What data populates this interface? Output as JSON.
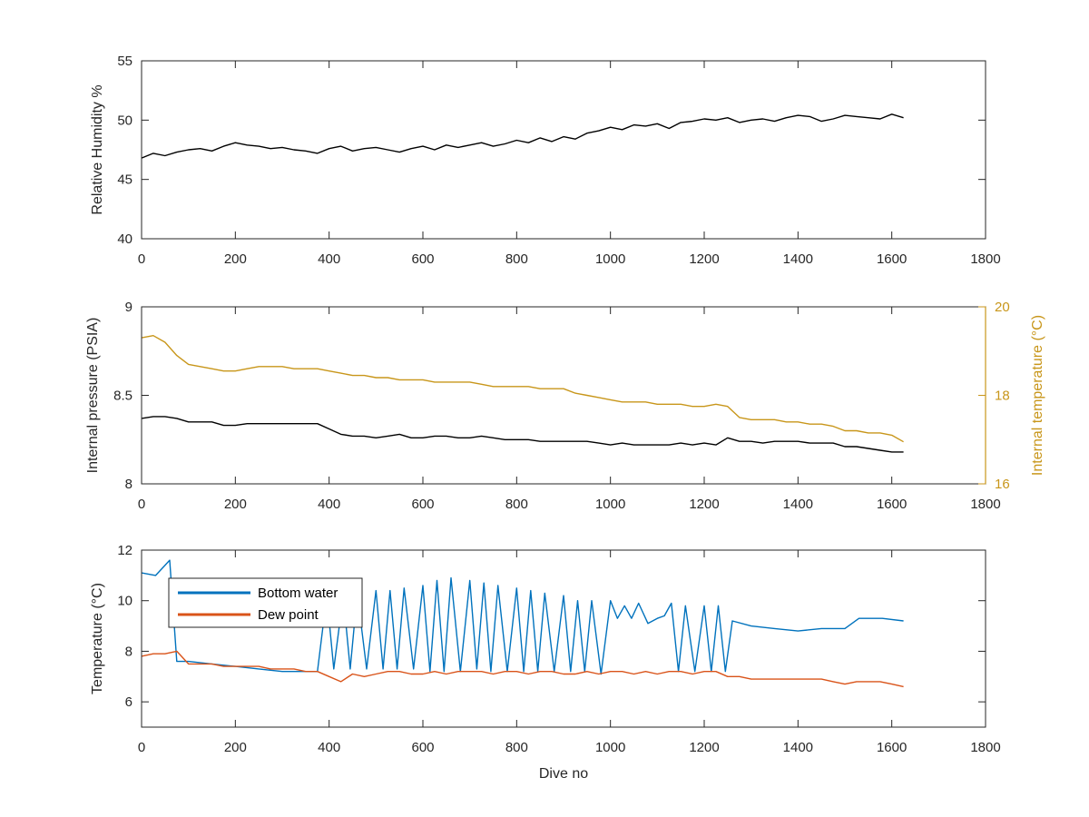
{
  "colors": {
    "axis": "#262626",
    "black_series": "#000000",
    "gold_series": "#C8961A",
    "blue_series": "#0072BD",
    "orange_series": "#D95319"
  },
  "chart_data": [
    {
      "type": "line",
      "xlabel": "",
      "ylabel": "Relative Humidity %",
      "xlim": [
        0,
        1800
      ],
      "ylim": [
        40,
        55
      ],
      "xticks": [
        "0",
        "200",
        "400",
        "600",
        "800",
        "1000",
        "1200",
        "1400",
        "1600",
        "1800"
      ],
      "yticks": [
        "40",
        "45",
        "50",
        "55"
      ],
      "series": [
        {
          "color_key": "black_series",
          "x": [
            0,
            25,
            50,
            75,
            100,
            125,
            150,
            175,
            200,
            225,
            250,
            275,
            300,
            325,
            350,
            375,
            400,
            425,
            450,
            475,
            500,
            525,
            550,
            575,
            600,
            625,
            650,
            675,
            700,
            725,
            750,
            775,
            800,
            825,
            850,
            875,
            900,
            925,
            950,
            975,
            1000,
            1025,
            1050,
            1075,
            1100,
            1125,
            1150,
            1175,
            1200,
            1225,
            1250,
            1275,
            1300,
            1325,
            1350,
            1375,
            1400,
            1425,
            1450,
            1475,
            1500,
            1525,
            1550,
            1575,
            1600,
            1625
          ],
          "y": [
            46.8,
            47.2,
            47.0,
            47.3,
            47.5,
            47.6,
            47.4,
            47.8,
            48.1,
            47.9,
            47.8,
            47.6,
            47.7,
            47.5,
            47.4,
            47.2,
            47.6,
            47.8,
            47.4,
            47.6,
            47.7,
            47.5,
            47.3,
            47.6,
            47.8,
            47.5,
            47.9,
            47.7,
            47.9,
            48.1,
            47.8,
            48.0,
            48.3,
            48.1,
            48.5,
            48.2,
            48.6,
            48.4,
            48.9,
            49.1,
            49.4,
            49.2,
            49.6,
            49.5,
            49.7,
            49.3,
            49.8,
            49.9,
            50.1,
            50.0,
            50.2,
            49.8,
            50.0,
            50.1,
            49.9,
            50.2,
            50.4,
            50.3,
            49.9,
            50.1,
            50.4,
            50.3,
            50.2,
            50.1,
            50.5,
            50.2
          ]
        }
      ]
    },
    {
      "type": "line",
      "xlabel": "",
      "ylabel": "Internal pressure (PSIA)",
      "y2label": "Internal temperature (°C)",
      "xlim": [
        0,
        1800
      ],
      "ylim": [
        8,
        9
      ],
      "y2lim": [
        16,
        20
      ],
      "xticks": [
        "0",
        "200",
        "400",
        "600",
        "800",
        "1000",
        "1200",
        "1400",
        "1600",
        "1800"
      ],
      "yticks": [
        "8",
        "8.5",
        "9"
      ],
      "y2ticks": [
        "16",
        "18",
        "20"
      ],
      "series": [
        {
          "axis": "left",
          "color_key": "black_series",
          "x": [
            0,
            25,
            50,
            75,
            100,
            125,
            150,
            175,
            200,
            225,
            250,
            275,
            300,
            325,
            350,
            375,
            400,
            425,
            450,
            475,
            500,
            525,
            550,
            575,
            600,
            625,
            650,
            675,
            700,
            725,
            750,
            775,
            800,
            825,
            850,
            875,
            900,
            925,
            950,
            975,
            1000,
            1025,
            1050,
            1075,
            1100,
            1125,
            1150,
            1175,
            1200,
            1225,
            1250,
            1275,
            1300,
            1325,
            1350,
            1375,
            1400,
            1425,
            1450,
            1475,
            1500,
            1525,
            1550,
            1575,
            1600,
            1625
          ],
          "y": [
            8.37,
            8.38,
            8.38,
            8.37,
            8.35,
            8.35,
            8.35,
            8.33,
            8.33,
            8.34,
            8.34,
            8.34,
            8.34,
            8.34,
            8.34,
            8.34,
            8.31,
            8.28,
            8.27,
            8.27,
            8.26,
            8.27,
            8.28,
            8.26,
            8.26,
            8.27,
            8.27,
            8.26,
            8.26,
            8.27,
            8.26,
            8.25,
            8.25,
            8.25,
            8.24,
            8.24,
            8.24,
            8.24,
            8.24,
            8.23,
            8.22,
            8.23,
            8.22,
            8.22,
            8.22,
            8.22,
            8.23,
            8.22,
            8.23,
            8.22,
            8.26,
            8.24,
            8.24,
            8.23,
            8.24,
            8.24,
            8.24,
            8.23,
            8.23,
            8.23,
            8.21,
            8.21,
            8.2,
            8.19,
            8.18,
            8.18
          ]
        },
        {
          "axis": "right",
          "color_key": "gold_series",
          "x": [
            0,
            25,
            50,
            75,
            100,
            125,
            150,
            175,
            200,
            225,
            250,
            275,
            300,
            325,
            350,
            375,
            400,
            425,
            450,
            475,
            500,
            525,
            550,
            575,
            600,
            625,
            650,
            675,
            700,
            725,
            750,
            775,
            800,
            825,
            850,
            875,
            900,
            925,
            950,
            975,
            1000,
            1025,
            1050,
            1075,
            1100,
            1125,
            1150,
            1175,
            1200,
            1225,
            1250,
            1275,
            1300,
            1325,
            1350,
            1375,
            1400,
            1425,
            1450,
            1475,
            1500,
            1525,
            1550,
            1575,
            1600,
            1625
          ],
          "y": [
            19.3,
            19.35,
            19.2,
            18.9,
            18.7,
            18.65,
            18.6,
            18.55,
            18.55,
            18.6,
            18.65,
            18.65,
            18.65,
            18.6,
            18.6,
            18.6,
            18.55,
            18.5,
            18.45,
            18.45,
            18.4,
            18.4,
            18.35,
            18.35,
            18.35,
            18.3,
            18.3,
            18.3,
            18.3,
            18.25,
            18.2,
            18.2,
            18.2,
            18.2,
            18.15,
            18.15,
            18.15,
            18.05,
            18.0,
            17.95,
            17.9,
            17.85,
            17.85,
            17.85,
            17.8,
            17.8,
            17.8,
            17.75,
            17.75,
            17.8,
            17.75,
            17.5,
            17.45,
            17.45,
            17.45,
            17.4,
            17.4,
            17.35,
            17.35,
            17.3,
            17.2,
            17.2,
            17.15,
            17.15,
            17.1,
            16.95
          ]
        }
      ]
    },
    {
      "type": "line",
      "xlabel": "Dive no",
      "ylabel": "Temperature (°C)",
      "xlim": [
        0,
        1800
      ],
      "ylim": [
        5,
        12
      ],
      "xticks": [
        "0",
        "200",
        "400",
        "600",
        "800",
        "1000",
        "1200",
        "1400",
        "1600",
        "1800"
      ],
      "yticks": [
        "6",
        "8",
        "10",
        "12"
      ],
      "legend_position": "top-left",
      "series": [
        {
          "name": "Bottom water",
          "color_key": "blue_series",
          "x": [
            0,
            30,
            60,
            75,
            100,
            150,
            200,
            250,
            300,
            350,
            375,
            395,
            410,
            430,
            445,
            460,
            480,
            500,
            515,
            530,
            545,
            560,
            580,
            600,
            615,
            630,
            645,
            660,
            680,
            700,
            715,
            730,
            745,
            760,
            780,
            800,
            815,
            830,
            845,
            860,
            880,
            900,
            915,
            930,
            945,
            960,
            980,
            1000,
            1015,
            1030,
            1045,
            1060,
            1080,
            1100,
            1115,
            1130,
            1145,
            1160,
            1180,
            1200,
            1215,
            1230,
            1245,
            1260,
            1300,
            1350,
            1400,
            1450,
            1500,
            1530,
            1580,
            1625
          ],
          "y": [
            11.1,
            11.0,
            11.6,
            7.6,
            7.6,
            7.5,
            7.4,
            7.3,
            7.2,
            7.2,
            7.2,
            10.2,
            7.3,
            10.2,
            7.3,
            10.3,
            7.3,
            10.4,
            7.3,
            10.4,
            7.3,
            10.5,
            7.3,
            10.6,
            7.2,
            10.8,
            7.2,
            10.9,
            7.2,
            10.8,
            7.3,
            10.7,
            7.2,
            10.6,
            7.2,
            10.5,
            7.2,
            10.4,
            7.2,
            10.3,
            7.2,
            10.2,
            7.2,
            10.0,
            7.2,
            10.0,
            7.1,
            10.0,
            9.3,
            9.8,
            9.3,
            9.9,
            9.1,
            9.3,
            9.4,
            9.9,
            7.2,
            9.8,
            7.2,
            9.8,
            7.2,
            9.8,
            7.2,
            9.2,
            9.0,
            8.9,
            8.8,
            8.9,
            8.9,
            9.3,
            9.3,
            9.2
          ]
        },
        {
          "name": "Dew point",
          "color_key": "orange_series",
          "x": [
            0,
            25,
            50,
            75,
            100,
            125,
            150,
            175,
            200,
            225,
            250,
            275,
            300,
            325,
            350,
            375,
            400,
            425,
            450,
            475,
            500,
            525,
            550,
            575,
            600,
            625,
            650,
            675,
            700,
            725,
            750,
            775,
            800,
            825,
            850,
            875,
            900,
            925,
            950,
            975,
            1000,
            1025,
            1050,
            1075,
            1100,
            1125,
            1150,
            1175,
            1200,
            1225,
            1250,
            1275,
            1300,
            1325,
            1350,
            1375,
            1400,
            1425,
            1450,
            1475,
            1500,
            1525,
            1550,
            1575,
            1600,
            1625
          ],
          "y": [
            7.8,
            7.9,
            7.9,
            8.0,
            7.5,
            7.5,
            7.5,
            7.4,
            7.4,
            7.4,
            7.4,
            7.3,
            7.3,
            7.3,
            7.2,
            7.2,
            7.0,
            6.8,
            7.1,
            7.0,
            7.1,
            7.2,
            7.2,
            7.1,
            7.1,
            7.2,
            7.1,
            7.2,
            7.2,
            7.2,
            7.1,
            7.2,
            7.2,
            7.1,
            7.2,
            7.2,
            7.1,
            7.1,
            7.2,
            7.1,
            7.2,
            7.2,
            7.1,
            7.2,
            7.1,
            7.2,
            7.2,
            7.1,
            7.2,
            7.2,
            7.0,
            7.0,
            6.9,
            6.9,
            6.9,
            6.9,
            6.9,
            6.9,
            6.9,
            6.8,
            6.7,
            6.8,
            6.8,
            6.8,
            6.7,
            6.6
          ]
        }
      ]
    }
  ]
}
